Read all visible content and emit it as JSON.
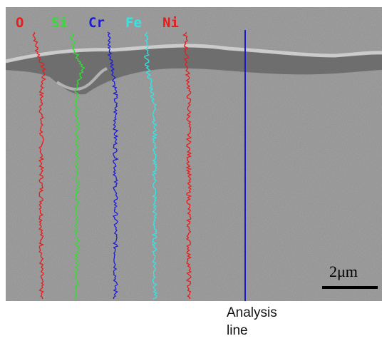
{
  "labels": {
    "elements": [
      "O",
      "Si",
      "Cr",
      "Fe",
      "Ni"
    ],
    "scale_bar": "2μm",
    "annotation": "Analysis line"
  }
}
